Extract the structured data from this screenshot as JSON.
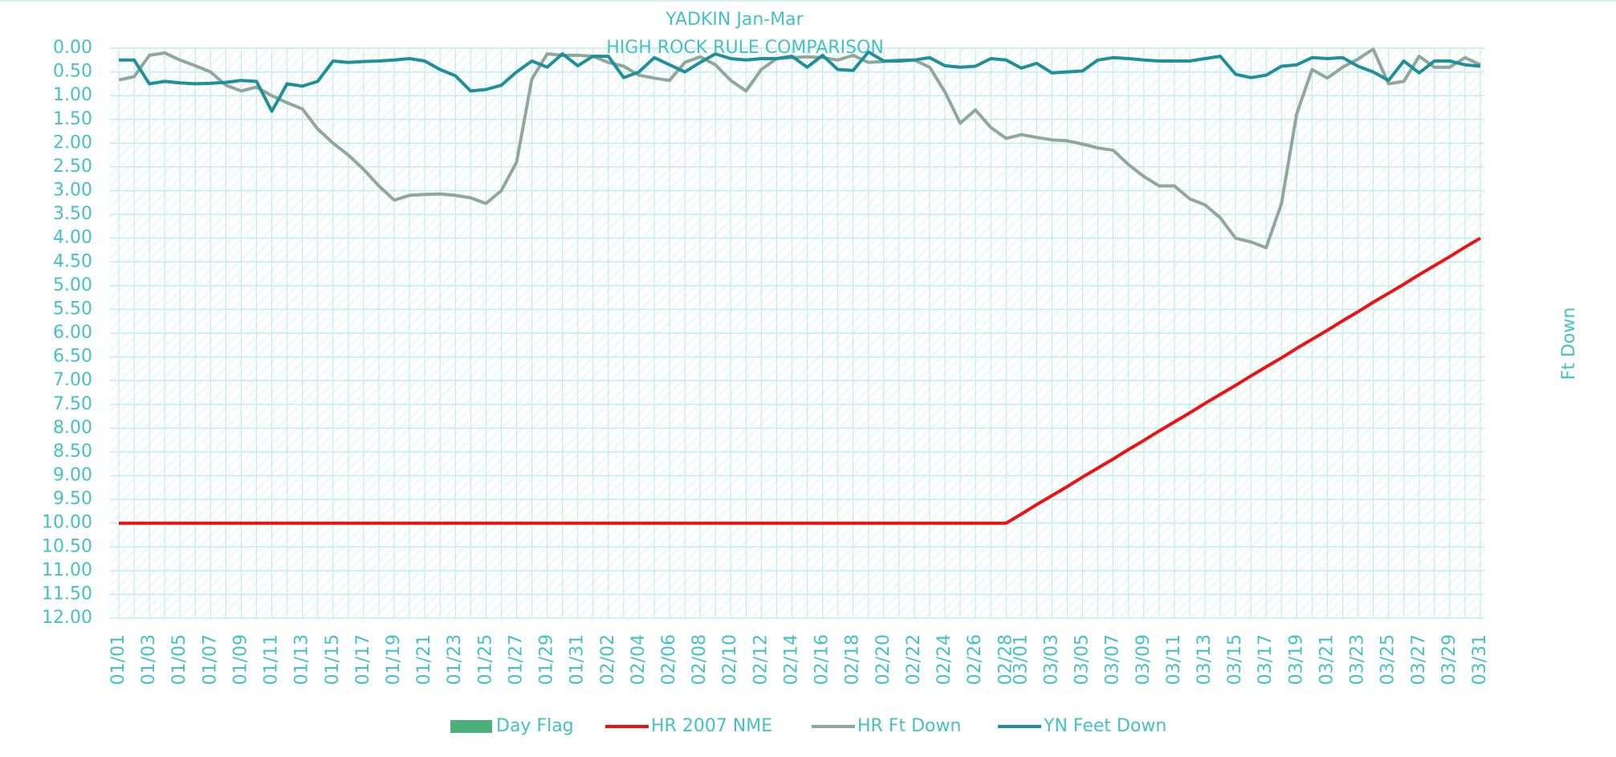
{
  "chart_data": {
    "type": "line",
    "title": "YADKIN Jan-Mar",
    "subtitle": "HIGH ROCK RULE COMPARISON",
    "y_axis_label": "Ft Down",
    "y_inverted": true,
    "grid": true,
    "legend": "bottom",
    "categories": [
      "01/01",
      null,
      "01/03",
      null,
      "01/05",
      null,
      "01/07",
      null,
      "01/09",
      null,
      "01/11",
      null,
      "01/13",
      null,
      "01/15",
      null,
      "01/17",
      null,
      "01/19",
      null,
      "01/21",
      null,
      "01/23",
      null,
      "01/25",
      null,
      "01/27",
      null,
      "01/29",
      null,
      "01/31",
      null,
      "02/02",
      null,
      "02/04",
      null,
      "02/06",
      null,
      "02/08",
      null,
      "02/10",
      null,
      "02/12",
      null,
      "02/14",
      null,
      "02/16",
      null,
      "02/18",
      null,
      "02/20",
      null,
      "02/22",
      null,
      "02/24",
      null,
      "02/26",
      null,
      "02/28",
      "03/01",
      null,
      "03/03",
      null,
      "03/05",
      null,
      "03/07",
      null,
      "03/09",
      null,
      "03/11",
      null,
      "03/13",
      null,
      "03/15",
      null,
      "03/17",
      null,
      "03/19",
      null,
      "03/21",
      null,
      "03/23",
      null,
      "03/25",
      null,
      "03/27",
      null,
      "03/29",
      null,
      "03/31"
    ],
    "ylim": [
      0,
      12
    ],
    "yticks": [
      {
        "value": 0,
        "label": "0.00"
      },
      {
        "value": 0.5,
        "label": "0.50"
      },
      {
        "value": 1,
        "label": "1.00"
      },
      {
        "value": 1.5,
        "label": "1.50"
      },
      {
        "value": 2,
        "label": "2.00"
      },
      {
        "value": 2.5,
        "label": "2.50"
      },
      {
        "value": 3,
        "label": "3.00"
      },
      {
        "value": 3.5,
        "label": "3.50"
      },
      {
        "value": 4,
        "label": "4.00"
      },
      {
        "value": 4.5,
        "label": "4.50"
      },
      {
        "value": 5,
        "label": "5.00"
      },
      {
        "value": 5.5,
        "label": "5.50"
      },
      {
        "value": 6,
        "label": "6.00"
      },
      {
        "value": 6.5,
        "label": "6.50"
      },
      {
        "value": 7,
        "label": "7.00"
      },
      {
        "value": 7.5,
        "label": "7.50"
      },
      {
        "value": 8,
        "label": "8.00"
      },
      {
        "value": 8.5,
        "label": "8.50"
      },
      {
        "value": 9,
        "label": "9.00"
      },
      {
        "value": 9.5,
        "label": "9.50"
      },
      {
        "value": 10,
        "label": "10.00"
      },
      {
        "value": 10.5,
        "label": "10.50"
      },
      {
        "value": 11,
        "label": "11.00"
      },
      {
        "value": 11.5,
        "label": "11.50"
      },
      {
        "value": 12,
        "label": "12.00"
      }
    ],
    "series": [
      {
        "name": "Day Flag",
        "color": "#4cb07a",
        "type": "bar"
      },
      {
        "name": "HR 2007 NME",
        "color": "#ee1111",
        "values": [
          10,
          10,
          10,
          10,
          10,
          10,
          10,
          10,
          10,
          10,
          10,
          10,
          10,
          10,
          10,
          10,
          10,
          10,
          10,
          10,
          10,
          10,
          10,
          10,
          10,
          10,
          10,
          10,
          10,
          10,
          10,
          10,
          10,
          10,
          10,
          10,
          10,
          10,
          10,
          10,
          10,
          10,
          10,
          10,
          10,
          10,
          10,
          10,
          10,
          10,
          10,
          10,
          10,
          10,
          10,
          10,
          10,
          10,
          10,
          9.81,
          9.61,
          9.42,
          9.23,
          9.03,
          8.84,
          8.65,
          8.45,
          8.26,
          8.06,
          7.87,
          7.68,
          7.48,
          7.29,
          7.1,
          6.9,
          6.71,
          6.52,
          6.32,
          6.13,
          5.94,
          5.74,
          5.55,
          5.35,
          5.16,
          4.97,
          4.77,
          4.58,
          4.39,
          4.19,
          4.0
        ]
      },
      {
        "name": "HR Ft Down",
        "color": "#8fa89a",
        "values": [
          0.67,
          0.6,
          0.15,
          0.1,
          0.25,
          0.37,
          0.5,
          0.78,
          0.9,
          0.82,
          1.0,
          1.15,
          1.28,
          1.7,
          2.0,
          2.25,
          2.55,
          2.9,
          3.2,
          3.1,
          3.08,
          3.07,
          3.1,
          3.15,
          3.27,
          3.0,
          2.4,
          0.65,
          0.12,
          0.15,
          0.15,
          0.17,
          0.3,
          0.38,
          0.57,
          0.63,
          0.68,
          0.3,
          0.18,
          0.35,
          0.68,
          0.9,
          0.45,
          0.22,
          0.2,
          0.18,
          0.2,
          0.25,
          0.15,
          0.3,
          0.28,
          0.25,
          0.25,
          0.4,
          0.92,
          1.58,
          1.3,
          1.67,
          1.9,
          1.82,
          1.88,
          1.93,
          1.95,
          2.02,
          2.1,
          2.15,
          2.45,
          2.7,
          2.9,
          2.9,
          3.17,
          3.3,
          3.57,
          4.0,
          4.08,
          4.2,
          3.27,
          1.38,
          0.45,
          0.63,
          0.4,
          0.23,
          0.02,
          0.75,
          0.7,
          0.17,
          0.4,
          0.4,
          0.2,
          0.35
        ]
      },
      {
        "name": "YN Feet Down",
        "color": "#1f8f9a",
        "values": [
          0.25,
          0.25,
          0.75,
          0.7,
          0.73,
          0.75,
          0.74,
          0.72,
          0.68,
          0.7,
          1.33,
          0.75,
          0.8,
          0.7,
          0.27,
          0.3,
          0.28,
          0.27,
          0.25,
          0.22,
          0.27,
          0.45,
          0.58,
          0.9,
          0.87,
          0.78,
          0.5,
          0.27,
          0.4,
          0.12,
          0.37,
          0.17,
          0.17,
          0.62,
          0.5,
          0.2,
          0.35,
          0.5,
          0.3,
          0.12,
          0.22,
          0.25,
          0.22,
          0.22,
          0.17,
          0.4,
          0.15,
          0.45,
          0.47,
          0.08,
          0.27,
          0.27,
          0.25,
          0.2,
          0.37,
          0.4,
          0.38,
          0.22,
          0.25,
          0.42,
          0.32,
          0.52,
          0.5,
          0.48,
          0.25,
          0.2,
          0.22,
          0.25,
          0.27,
          0.27,
          0.27,
          0.22,
          0.17,
          0.55,
          0.62,
          0.57,
          0.38,
          0.35,
          0.2,
          0.22,
          0.2,
          0.38,
          0.5,
          0.68,
          0.27,
          0.52,
          0.27,
          0.27,
          0.35,
          0.38
        ]
      }
    ]
  }
}
